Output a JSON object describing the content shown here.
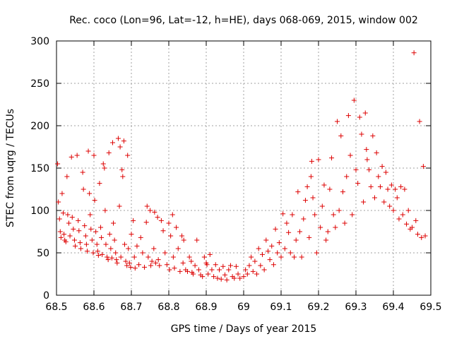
{
  "chart_data": {
    "type": "scatter",
    "title": "Rec. coco (Lon=96, Lat=-12, h=HE), days 068-069, 2015, window 002",
    "xlabel": "GPS time / Days of year 2015",
    "ylabel": "STEC from uqrg / TECUs",
    "xlim": [
      68.5,
      69.5
    ],
    "ylim": [
      0,
      300
    ],
    "x_ticks": [
      "68.5",
      "68.6",
      "68.7",
      "68.8",
      "68.9",
      "69",
      "69.1",
      "69.2",
      "69.3",
      "69.4",
      "69.5"
    ],
    "y_ticks": [
      "0",
      "50",
      "100",
      "150",
      "200",
      "250",
      "300"
    ],
    "grid": true,
    "marker": "plus",
    "color": "#dd0000",
    "points": [
      [
        68.503,
        155
      ],
      [
        68.505,
        110
      ],
      [
        68.508,
        90
      ],
      [
        68.51,
        75
      ],
      [
        68.512,
        68
      ],
      [
        68.515,
        120
      ],
      [
        68.518,
        97
      ],
      [
        68.52,
        72
      ],
      [
        68.522,
        65
      ],
      [
        68.525,
        63
      ],
      [
        68.528,
        140
      ],
      [
        68.53,
        95
      ],
      [
        68.533,
        85
      ],
      [
        68.536,
        70
      ],
      [
        68.54,
        163
      ],
      [
        68.542,
        92
      ],
      [
        68.545,
        78
      ],
      [
        68.548,
        65
      ],
      [
        68.55,
        58
      ],
      [
        68.555,
        165
      ],
      [
        68.558,
        88
      ],
      [
        68.56,
        76
      ],
      [
        68.563,
        62
      ],
      [
        68.565,
        55
      ],
      [
        68.57,
        145
      ],
      [
        68.572,
        125
      ],
      [
        68.575,
        82
      ],
      [
        68.578,
        70
      ],
      [
        68.58,
        60
      ],
      [
        68.582,
        52
      ],
      [
        68.585,
        170
      ],
      [
        68.588,
        120
      ],
      [
        68.59,
        95
      ],
      [
        68.592,
        78
      ],
      [
        68.595,
        65
      ],
      [
        68.598,
        50
      ],
      [
        68.6,
        165
      ],
      [
        68.602,
        112
      ],
      [
        68.605,
        75
      ],
      [
        68.608,
        60
      ],
      [
        68.61,
        52
      ],
      [
        68.612,
        47
      ],
      [
        68.615,
        132
      ],
      [
        68.618,
        80
      ],
      [
        68.62,
        68
      ],
      [
        68.622,
        48
      ],
      [
        68.625,
        155
      ],
      [
        68.628,
        150
      ],
      [
        68.63,
        100
      ],
      [
        68.632,
        60
      ],
      [
        68.635,
        45
      ],
      [
        68.638,
        42
      ],
      [
        68.64,
        168
      ],
      [
        68.642,
        72
      ],
      [
        68.645,
        55
      ],
      [
        68.648,
        44
      ],
      [
        68.65,
        180
      ],
      [
        68.652,
        85
      ],
      [
        68.655,
        65
      ],
      [
        68.658,
        50
      ],
      [
        68.66,
        42
      ],
      [
        68.662,
        38
      ],
      [
        68.665,
        185
      ],
      [
        68.668,
        105
      ],
      [
        68.67,
        175
      ],
      [
        68.672,
        45
      ],
      [
        68.675,
        148
      ],
      [
        68.677,
        140
      ],
      [
        68.68,
        182
      ],
      [
        68.682,
        60
      ],
      [
        68.685,
        40
      ],
      [
        68.688,
        35
      ],
      [
        68.69,
        165
      ],
      [
        68.692,
        55
      ],
      [
        68.695,
        38
      ],
      [
        68.698,
        33
      ],
      [
        68.7,
        72
      ],
      [
        68.705,
        88
      ],
      [
        68.708,
        45
      ],
      [
        68.71,
        32
      ],
      [
        68.715,
        58
      ],
      [
        68.72,
        36
      ],
      [
        68.725,
        68
      ],
      [
        68.73,
        50
      ],
      [
        68.735,
        33
      ],
      [
        68.74,
        86
      ],
      [
        68.742,
        105
      ],
      [
        68.745,
        45
      ],
      [
        68.75,
        100
      ],
      [
        68.752,
        35
      ],
      [
        68.755,
        40
      ],
      [
        68.76,
        55
      ],
      [
        68.762,
        98
      ],
      [
        68.765,
        38
      ],
      [
        68.77,
        92
      ],
      [
        68.772,
        42
      ],
      [
        68.775,
        35
      ],
      [
        68.78,
        88
      ],
      [
        68.785,
        76
      ],
      [
        68.79,
        50
      ],
      [
        68.795,
        36
      ],
      [
        68.8,
        85
      ],
      [
        68.802,
        30
      ],
      [
        68.805,
        70
      ],
      [
        68.81,
        95
      ],
      [
        68.812,
        45
      ],
      [
        68.815,
        32
      ],
      [
        68.82,
        80
      ],
      [
        68.825,
        55
      ],
      [
        68.83,
        28
      ],
      [
        68.835,
        70
      ],
      [
        68.838,
        38
      ],
      [
        68.84,
        65
      ],
      [
        68.845,
        30
      ],
      [
        68.85,
        28
      ],
      [
        68.855,
        45
      ],
      [
        68.86,
        40
      ],
      [
        68.862,
        27
      ],
      [
        68.865,
        25
      ],
      [
        68.87,
        35
      ],
      [
        68.875,
        65
      ],
      [
        68.88,
        30
      ],
      [
        68.885,
        24
      ],
      [
        68.89,
        22
      ],
      [
        68.895,
        45
      ],
      [
        68.9,
        38
      ],
      [
        68.902,
        36
      ],
      [
        68.905,
        25
      ],
      [
        68.91,
        48
      ],
      [
        68.915,
        30
      ],
      [
        68.92,
        22
      ],
      [
        68.925,
        36
      ],
      [
        68.93,
        20
      ],
      [
        68.935,
        30
      ],
      [
        68.94,
        19
      ],
      [
        68.945,
        34
      ],
      [
        68.95,
        24
      ],
      [
        68.955,
        18
      ],
      [
        68.96,
        30
      ],
      [
        68.965,
        35
      ],
      [
        68.97,
        22
      ],
      [
        68.975,
        20
      ],
      [
        68.98,
        34
      ],
      [
        68.985,
        25
      ],
      [
        68.99,
        20
      ],
      [
        69.0,
        22
      ],
      [
        69.005,
        30
      ],
      [
        69.01,
        25
      ],
      [
        69.015,
        35
      ],
      [
        69.02,
        45
      ],
      [
        69.025,
        28
      ],
      [
        69.03,
        40
      ],
      [
        69.035,
        25
      ],
      [
        69.04,
        55
      ],
      [
        69.045,
        35
      ],
      [
        69.05,
        48
      ],
      [
        69.055,
        30
      ],
      [
        69.06,
        65
      ],
      [
        69.065,
        52
      ],
      [
        69.07,
        42
      ],
      [
        69.075,
        58
      ],
      [
        69.08,
        36
      ],
      [
        69.085,
        78
      ],
      [
        69.09,
        50
      ],
      [
        69.095,
        62
      ],
      [
        69.1,
        45
      ],
      [
        69.105,
        96
      ],
      [
        69.11,
        55
      ],
      [
        69.115,
        85
      ],
      [
        69.12,
        74
      ],
      [
        69.125,
        50
      ],
      [
        69.13,
        95
      ],
      [
        69.135,
        45
      ],
      [
        69.14,
        65
      ],
      [
        69.145,
        122
      ],
      [
        69.15,
        75
      ],
      [
        69.155,
        45
      ],
      [
        69.16,
        90
      ],
      [
        69.165,
        112
      ],
      [
        69.17,
        128
      ],
      [
        69.175,
        68
      ],
      [
        69.18,
        140
      ],
      [
        69.182,
        158
      ],
      [
        69.185,
        115
      ],
      [
        69.19,
        95
      ],
      [
        69.195,
        50
      ],
      [
        69.2,
        160
      ],
      [
        69.205,
        80
      ],
      [
        69.21,
        105
      ],
      [
        69.215,
        130
      ],
      [
        69.22,
        65
      ],
      [
        69.225,
        75
      ],
      [
        69.23,
        125
      ],
      [
        69.235,
        162
      ],
      [
        69.24,
        95
      ],
      [
        69.245,
        80
      ],
      [
        69.25,
        205
      ],
      [
        69.255,
        100
      ],
      [
        69.26,
        188
      ],
      [
        69.265,
        122
      ],
      [
        69.27,
        85
      ],
      [
        69.275,
        140
      ],
      [
        69.28,
        212
      ],
      [
        69.285,
        165
      ],
      [
        69.29,
        95
      ],
      [
        69.295,
        230
      ],
      [
        69.3,
        148
      ],
      [
        69.305,
        132
      ],
      [
        69.31,
        210
      ],
      [
        69.315,
        190
      ],
      [
        69.32,
        110
      ],
      [
        69.325,
        215
      ],
      [
        69.328,
        172
      ],
      [
        69.33,
        160
      ],
      [
        69.335,
        148
      ],
      [
        69.34,
        128
      ],
      [
        69.345,
        188
      ],
      [
        69.35,
        115
      ],
      [
        69.355,
        168
      ],
      [
        69.36,
        140
      ],
      [
        69.365,
        128
      ],
      [
        69.37,
        152
      ],
      [
        69.375,
        110
      ],
      [
        69.38,
        145
      ],
      [
        69.385,
        125
      ],
      [
        69.39,
        105
      ],
      [
        69.395,
        130
      ],
      [
        69.4,
        100
      ],
      [
        69.405,
        125
      ],
      [
        69.41,
        115
      ],
      [
        69.415,
        90
      ],
      [
        69.42,
        128
      ],
      [
        69.425,
        95
      ],
      [
        69.43,
        125
      ],
      [
        69.435,
        84
      ],
      [
        69.44,
        100
      ],
      [
        69.445,
        78
      ],
      [
        69.45,
        80
      ],
      [
        69.455,
        286
      ],
      [
        69.46,
        88
      ],
      [
        69.465,
        72
      ],
      [
        69.47,
        205
      ],
      [
        69.475,
        68
      ],
      [
        69.48,
        152
      ],
      [
        69.485,
        70
      ]
    ]
  }
}
